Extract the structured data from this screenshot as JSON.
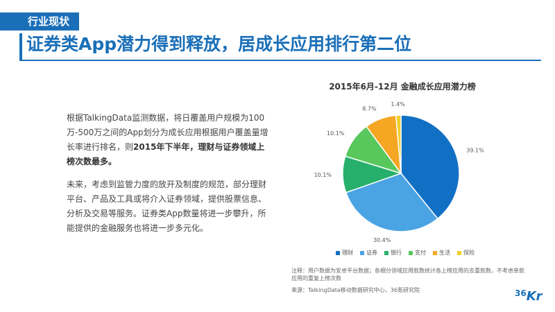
{
  "header": {
    "section_tag": "行业现状",
    "headline": "证券类App潜力得到释放，居成长应用排行第二位"
  },
  "body": {
    "p1_a": "根据TalkingData监测数据，将日覆盖用户规模为100万-500万之间的App划分为成长应用根据用户覆盖量增长率进行排名，则",
    "p1_b": "2015年下半年，理财与证券领域上榜次数最多。",
    "p2": "未来，考虑到监管力度的放开及制度的规范，部分理财平台、产品及工具或将介入证券领域，提供股票信息、分析及交易等服务。证券类App数量将进一步攀升，所能提供的金融服务也将进一步多元化。"
  },
  "chart_data": {
    "type": "pie",
    "title": "2015年6月-12月  金融成长应用潜力榜",
    "slices": [
      {
        "label": "理财",
        "value": 39.1,
        "value_label": "39.1%",
        "color": "#1270c4"
      },
      {
        "label": "证券",
        "value": 30.4,
        "value_label": "30.4%",
        "color": "#4aa3e3"
      },
      {
        "label": "银行",
        "value": 10.1,
        "value_label": "10.1%",
        "color": "#27b06b"
      },
      {
        "label": "支付",
        "value": 10.1,
        "value_label": "10.1%",
        "color": "#58c75c"
      },
      {
        "label": "生活",
        "value": 8.7,
        "value_label": "8.7%",
        "color": "#f5a623"
      },
      {
        "label": "保险",
        "value": 1.4,
        "value_label": "1.4%",
        "color": "#f2cf2e"
      }
    ],
    "legend_position": "bottom"
  },
  "notes": {
    "note": "注释：用户数据为安卓平台数据；各细分领域应用款数统计各上榜应用的去重款数，不考虑单款应用的重复上榜次数",
    "source": "来源：TalkingData移动数据研究中心，36氪研究院"
  },
  "logo": {
    "num": "36",
    "letter": "Kr"
  }
}
